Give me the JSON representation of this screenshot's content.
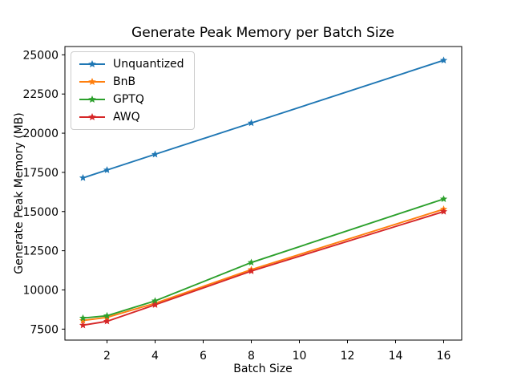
{
  "figure": {
    "background": "#ffffff",
    "axis_color": "#000000"
  },
  "chart_data": {
    "type": "line",
    "title": "Generate Peak Memory per Batch Size",
    "xlabel": "Batch Size",
    "ylabel": "Generate Peak Memory (MB)",
    "x": [
      1,
      2,
      4,
      8,
      16
    ],
    "series": [
      {
        "name": "Unquantized",
        "color": "#1f77b4",
        "marker": "star",
        "values": [
          17150,
          17650,
          18650,
          20650,
          24650
        ]
      },
      {
        "name": "BnB",
        "color": "#ff7f0e",
        "marker": "star",
        "values": [
          8050,
          8250,
          9150,
          11300,
          15150
        ]
      },
      {
        "name": "GPTQ",
        "color": "#2ca02c",
        "marker": "star",
        "values": [
          8200,
          8350,
          9300,
          11750,
          15800
        ]
      },
      {
        "name": "AWQ",
        "color": "#d62728",
        "marker": "star",
        "values": [
          7750,
          8000,
          9050,
          11200,
          15000
        ]
      }
    ],
    "xticks": [
      2,
      4,
      6,
      8,
      10,
      12,
      14,
      16
    ],
    "yticks": [
      7500,
      10000,
      12500,
      15000,
      17500,
      20000,
      22500,
      25000
    ],
    "xlim": [
      0.25,
      16.75
    ],
    "ylim": [
      6800,
      25530
    ],
    "legend_position": "upper left",
    "grid": false
  }
}
